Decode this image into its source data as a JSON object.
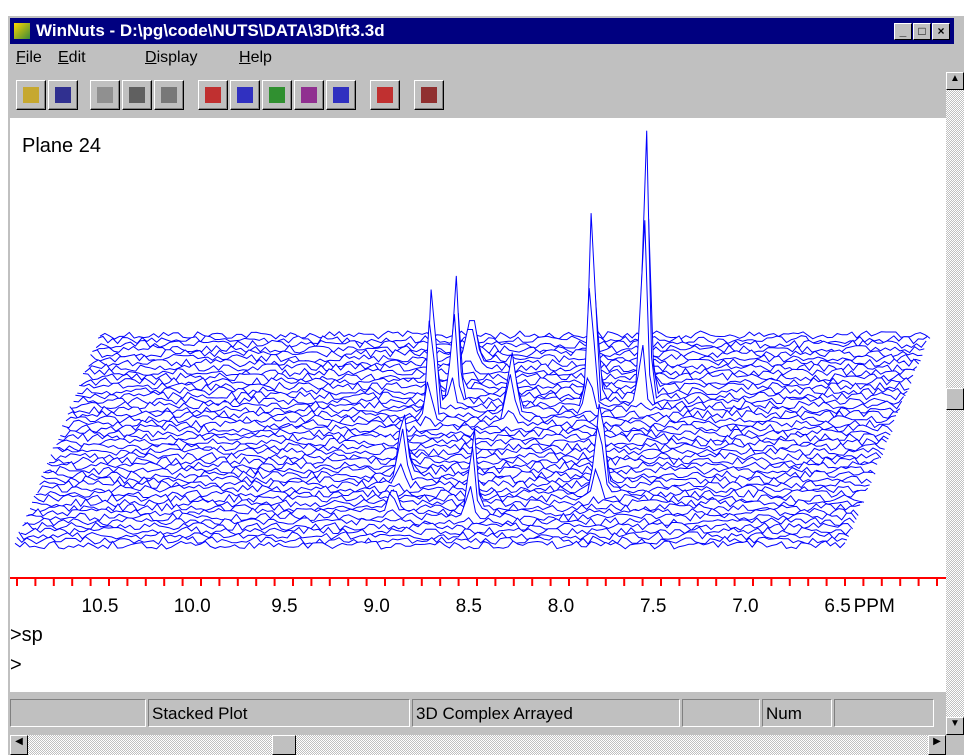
{
  "window": {
    "title": "WinNuts - D:\\pg\\code\\NUTS\\DATA\\3D\\ft3.3d"
  },
  "menu": [
    "File",
    "Edit",
    "Display",
    "Help"
  ],
  "plot": {
    "label": "Plane 24",
    "axis": {
      "labels": [
        "10.5",
        "10.0",
        "9.5",
        "9.0",
        "8.5",
        "8.0",
        "7.5",
        "7.0",
        "6.5"
      ],
      "unit": "PPM"
    }
  },
  "console": {
    "lines": [
      ">sp",
      ">"
    ]
  },
  "status_bar": {
    "panels": [
      "Stacked Plot",
      "3D Complex Arrayed",
      "Num"
    ]
  }
}
